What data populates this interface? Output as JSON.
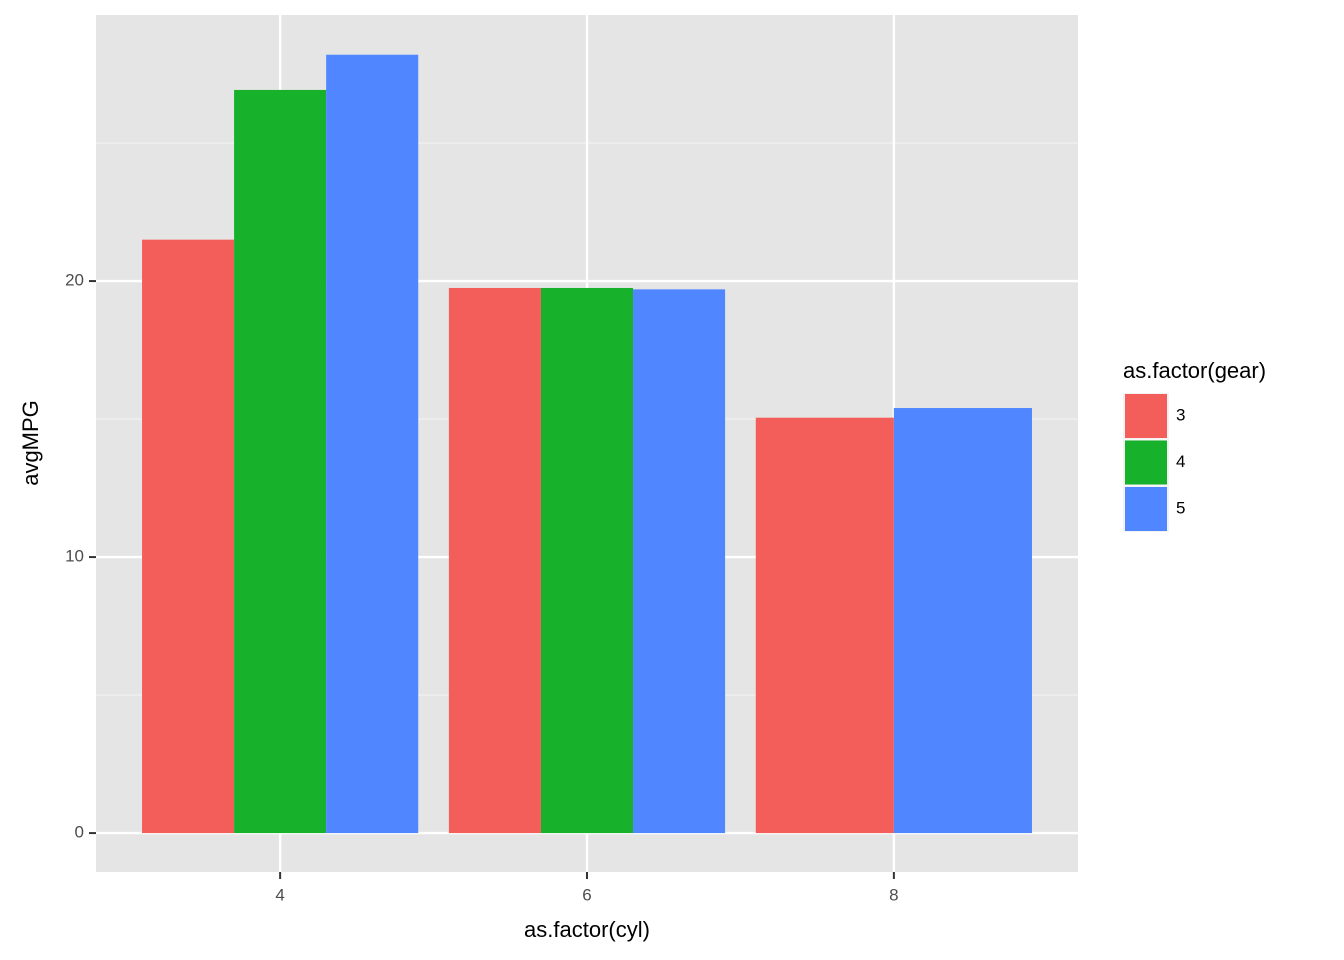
{
  "chart_data": {
    "type": "bar",
    "x_label": "as.factor(cyl)",
    "y_label": "avgMPG",
    "categories": [
      "4",
      "6",
      "8"
    ],
    "legend_title": "as.factor(gear)",
    "series": [
      {
        "name": "3",
        "color": "#f35e5a",
        "values": [
          21.5,
          19.75,
          15.05
        ]
      },
      {
        "name": "4",
        "color": "#17b12b",
        "values": [
          26.925,
          19.75,
          null
        ]
      },
      {
        "name": "5",
        "color": "#5086ff",
        "values": [
          28.2,
          19.7,
          15.4
        ]
      }
    ],
    "ylim": [
      -1.41,
      29.64
    ],
    "yticks": [
      0,
      10,
      20
    ],
    "yminor": [
      5,
      15,
      25
    ],
    "grid": true,
    "legend": "right"
  }
}
